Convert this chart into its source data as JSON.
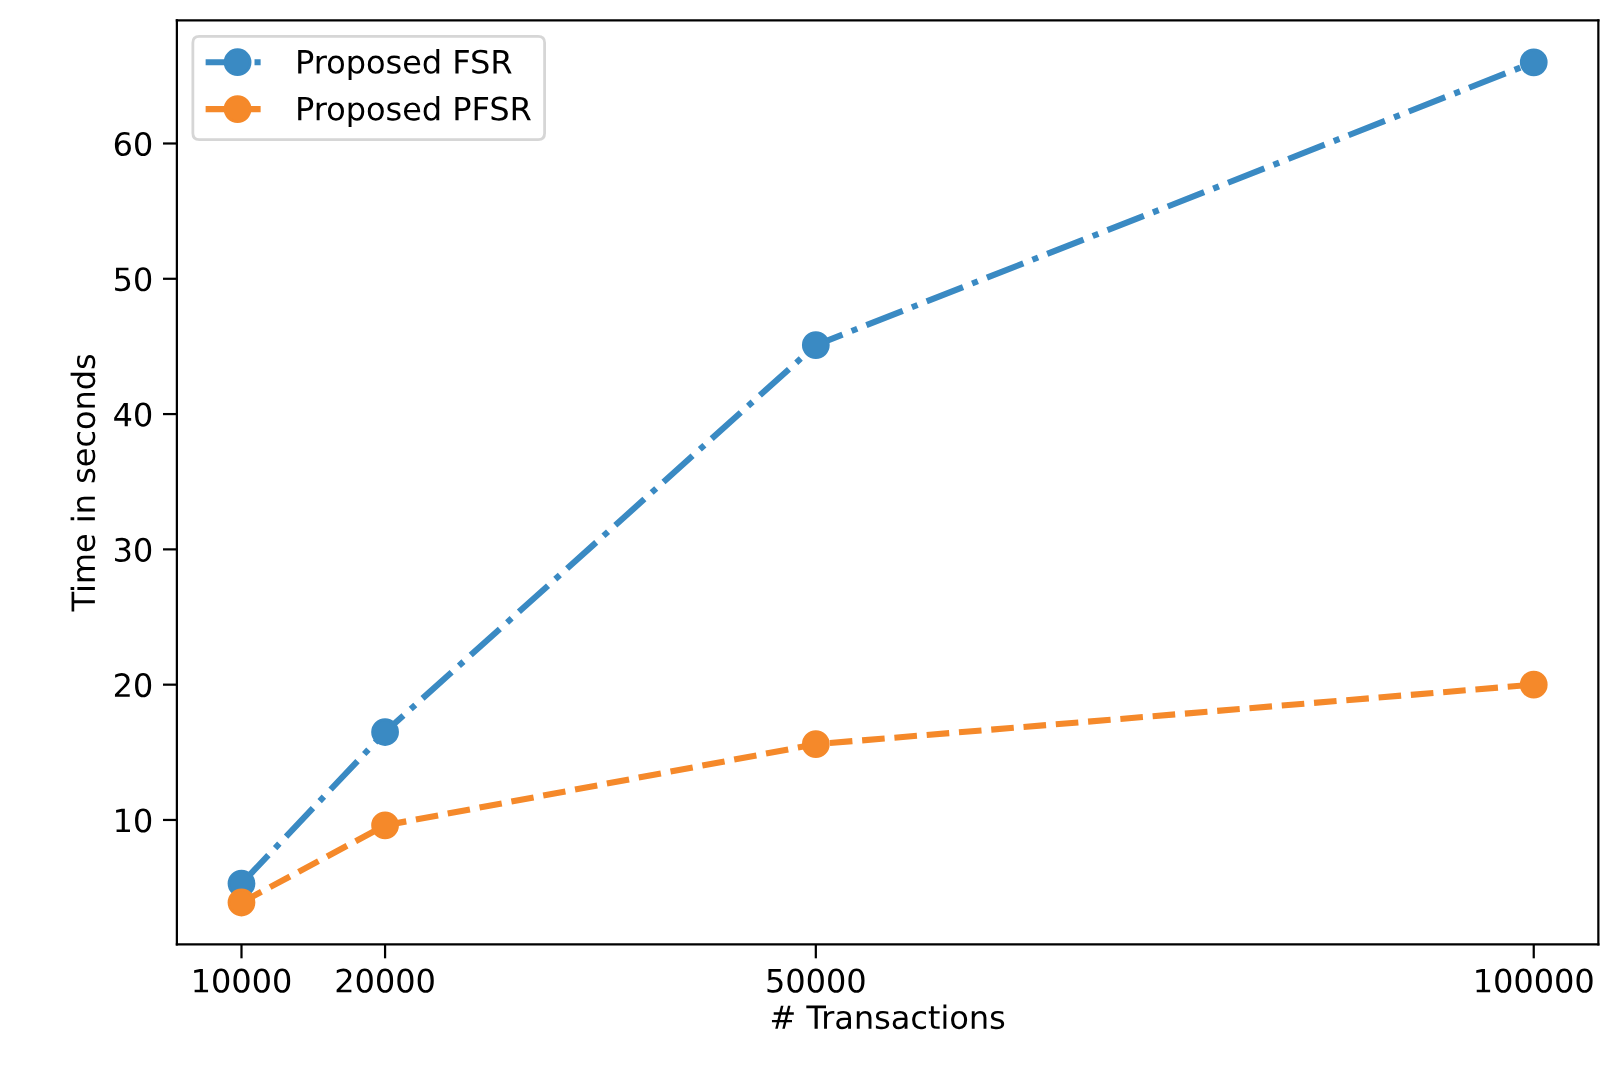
{
  "chart_data": {
    "type": "line",
    "xlabel": "# Transactions",
    "ylabel": "Time in seconds",
    "x": [
      10000,
      20000,
      50000,
      100000
    ],
    "series": [
      {
        "name": "Proposed FSR",
        "color": "#3a8ac3",
        "values": [
          5.3,
          16.5,
          45.1,
          66.0
        ],
        "line_style": "dashdot"
      },
      {
        "name": "Proposed PFSR",
        "color": "#f5892a",
        "values": [
          3.9,
          9.6,
          15.6,
          20.0
        ],
        "line_style": "dashed"
      }
    ],
    "xlim": [
      5500,
      104500
    ],
    "xticks": [
      10000,
      20000,
      50000,
      100000
    ],
    "ylim": [
      0.8,
      69.1
    ],
    "yticks": [
      10,
      20,
      30,
      40,
      50,
      60
    ],
    "marker": "circle",
    "grid": false,
    "legend": "top left"
  }
}
